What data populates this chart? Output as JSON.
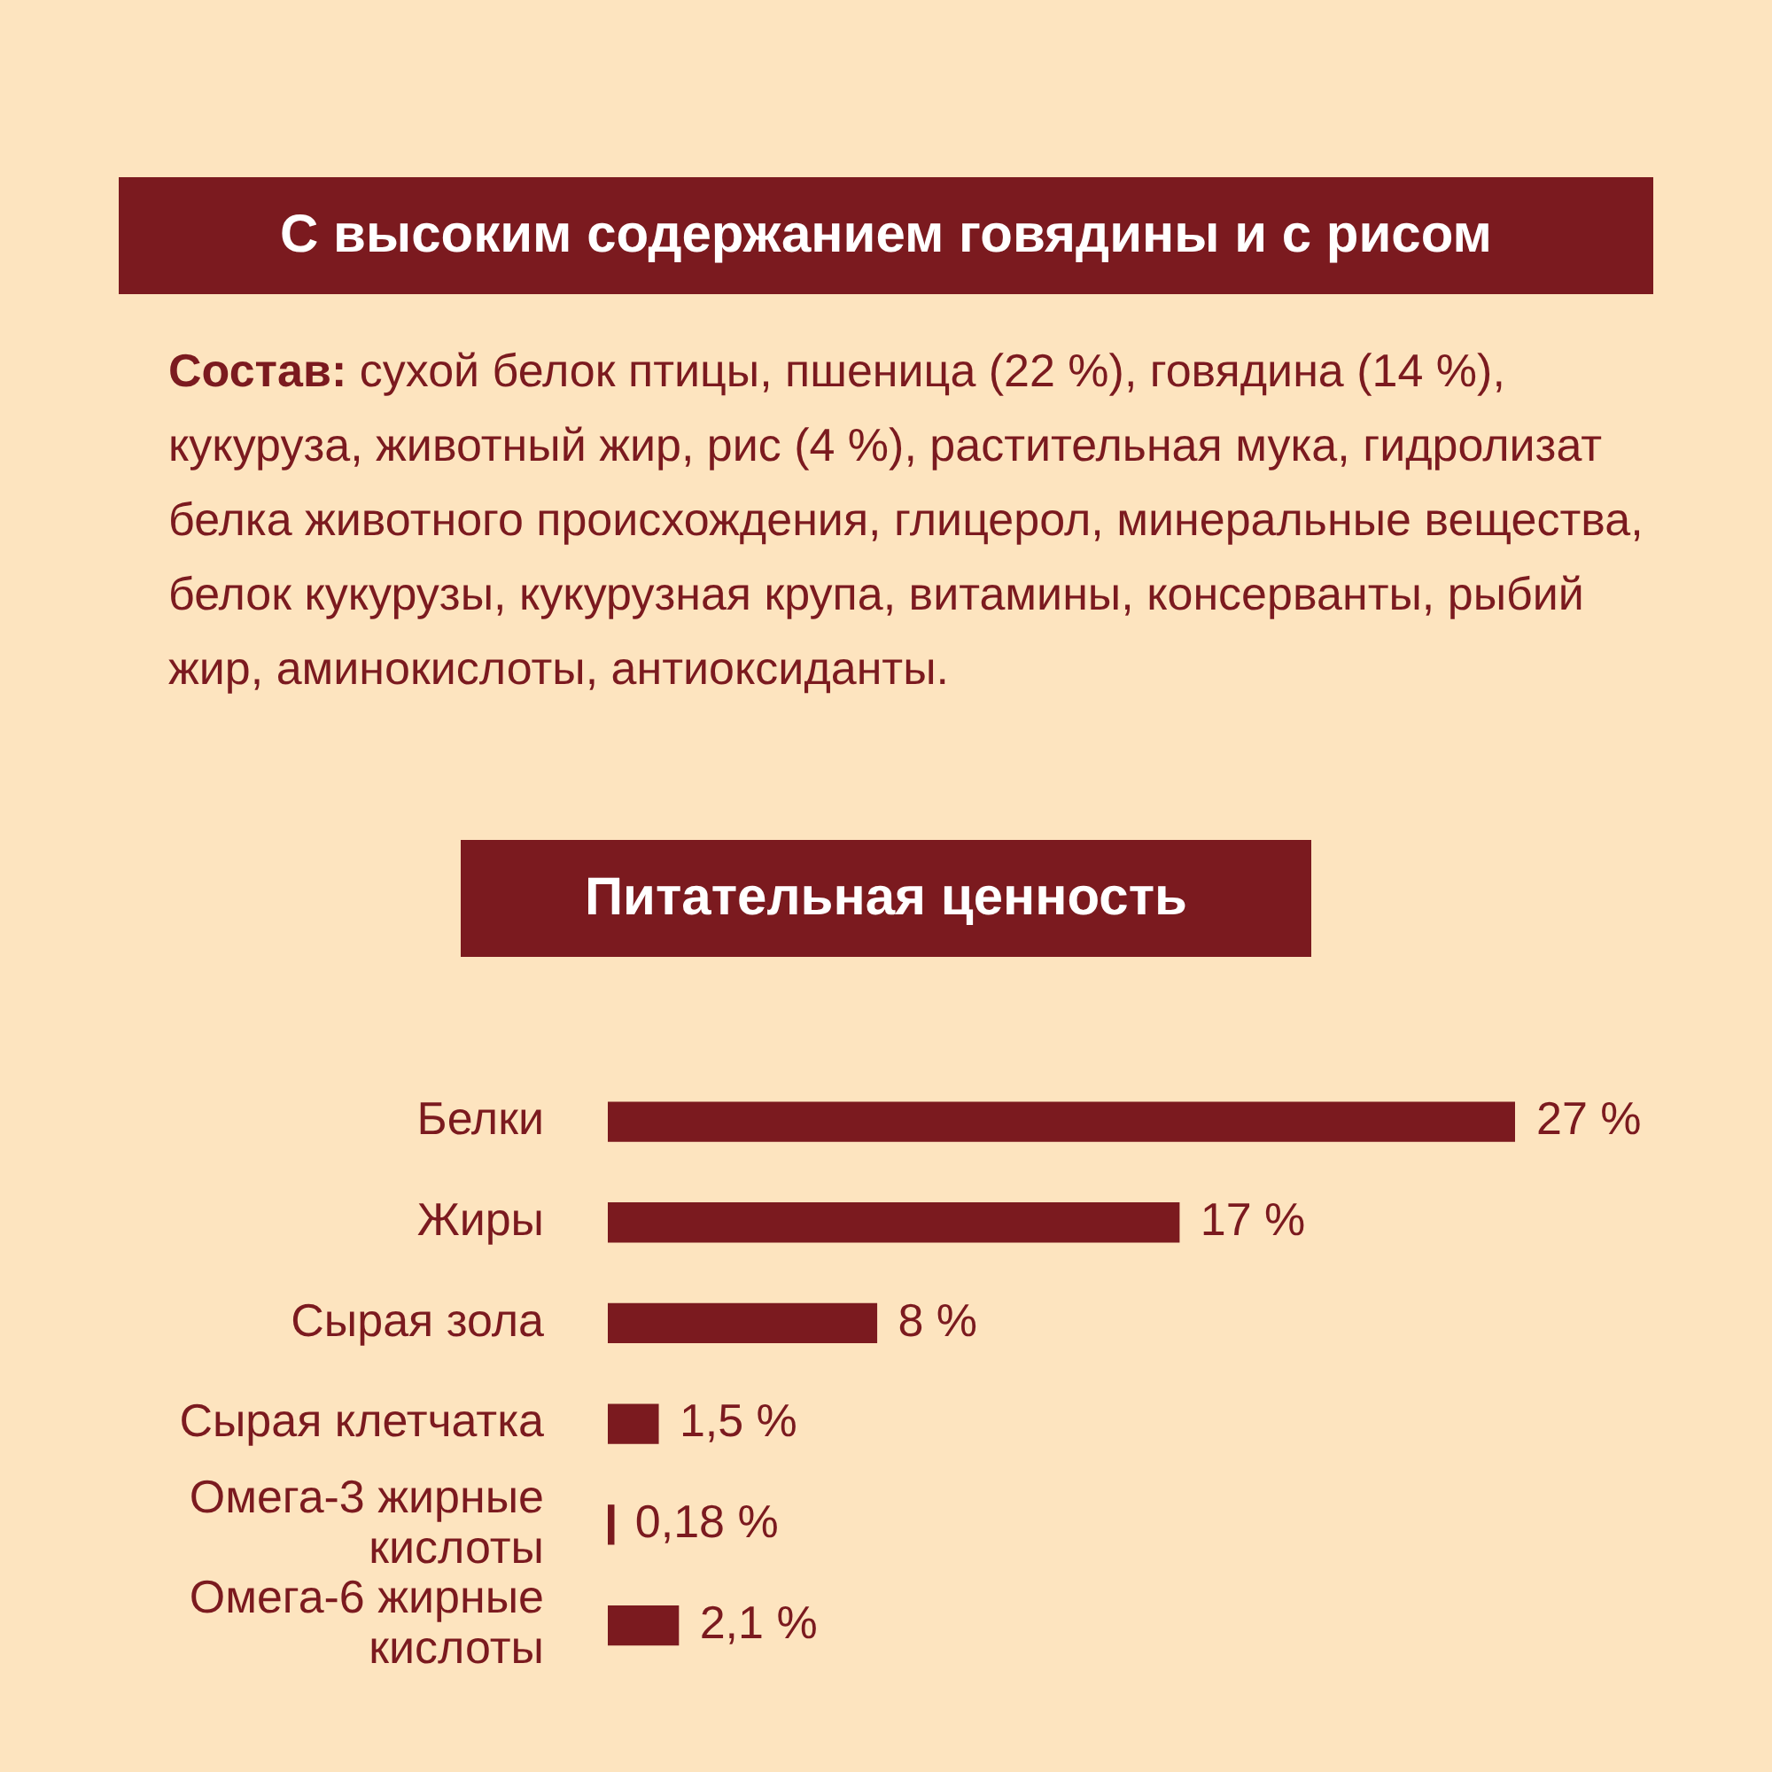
{
  "chart_data": {
    "type": "bar",
    "orientation": "horizontal",
    "title": "С высоким содержанием говядины и с рисом",
    "subtitle": "Питательная ценность",
    "annotations": [
      "Состав:",
      "сухой белок птицы, пшеница (22 %), говядина (14 %), кукуруза, животный жир, рис (4 %), растительная мука, гидролизат белка животного происхождения, глицерол, минеральные вещества, белок кукурузы, кукурузная крупа, витамины, консерванты, рыбий жир, аминокислоты, антиоксиданты."
    ],
    "categories": [
      "Белки",
      "Жиры",
      "Сырая зола",
      "Сырая клетчатка",
      "Омега-3 жирные кислоты",
      "Омега-6 жирные кислоты"
    ],
    "values": [
      27,
      17,
      8,
      1.5,
      0.18,
      2.1
    ],
    "value_labels": [
      "27 %",
      "17 %",
      "8 %",
      "1,5 %",
      "0,18 %",
      "2,1 %"
    ],
    "color": "#7b1a1f"
  }
}
